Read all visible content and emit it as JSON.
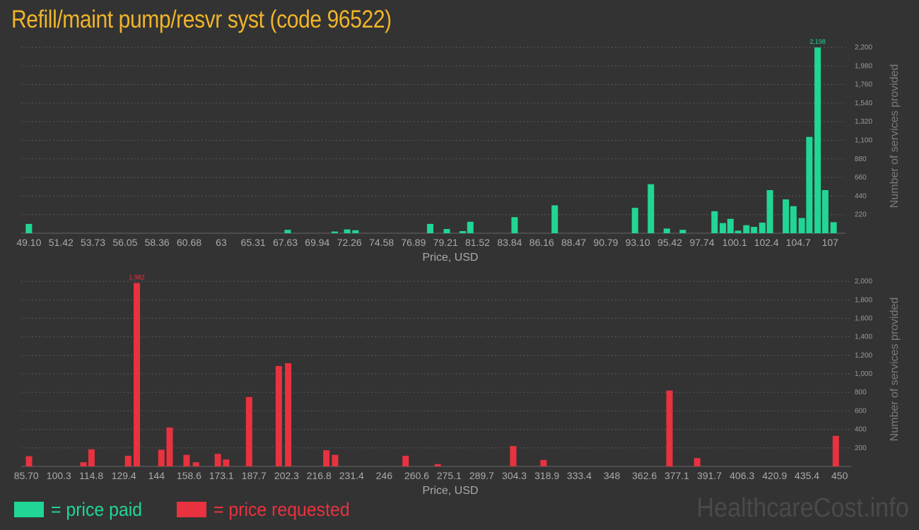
{
  "page": {
    "title": "Refill/maint pump/resvr syst (code 96522)",
    "watermark": "HealthcareCost.info"
  },
  "legend": {
    "paid_label": "= price paid",
    "requested_label": "= price requested"
  },
  "colors": {
    "paid": "#21d694",
    "requested": "#e8323f",
    "title": "#f0b429",
    "grid": "#5a5a5a",
    "tick": "#aaaaaa"
  },
  "chart_data": [
    {
      "type": "bar",
      "series": [
        {
          "name": "price paid",
          "color": "#21d694"
        }
      ],
      "xlabel": "Price, USD",
      "ylabel": "Number of services provided",
      "xlim": [
        48.8,
        107.6
      ],
      "ylim": [
        0,
        2300
      ],
      "grid": true,
      "x_ticks": [
        49.1,
        51.42,
        53.73,
        56.05,
        58.36,
        60.68,
        63,
        65.31,
        67.63,
        69.94,
        72.26,
        74.58,
        76.89,
        79.21,
        81.52,
        83.84,
        86.16,
        88.47,
        90.79,
        93.1,
        95.42,
        97.74,
        100.1,
        102.4,
        104.7,
        107
      ],
      "x_tick_labels": [
        "49.10",
        "51.42",
        "53.73",
        "56.05",
        "58.36",
        "60.68",
        "63",
        "65.31",
        "67.63",
        "69.94",
        "72.26",
        "74.58",
        "76.89",
        "79.21",
        "81.52",
        "83.84",
        "86.16",
        "88.47",
        "90.79",
        "93.10",
        "95.42",
        "97.74",
        "100.1",
        "102.4",
        "104.7",
        "107"
      ],
      "y_ticks": [
        220,
        440,
        660,
        880,
        1100,
        1320,
        1540,
        1760,
        1980,
        2200
      ],
      "y_tick_labels": [
        "220",
        "440",
        "660",
        "880",
        "1,100",
        "1,320",
        "1,540",
        "1,760",
        "1,980",
        "2,200"
      ],
      "peak_label": "2,198",
      "bars": [
        {
          "x": 49.1,
          "y": 110
        },
        {
          "x": 67.8,
          "y": 40
        },
        {
          "x": 71.2,
          "y": 20
        },
        {
          "x": 72.1,
          "y": 45
        },
        {
          "x": 72.7,
          "y": 35
        },
        {
          "x": 78.1,
          "y": 110
        },
        {
          "x": 79.3,
          "y": 50
        },
        {
          "x": 80.45,
          "y": 25
        },
        {
          "x": 81.0,
          "y": 135
        },
        {
          "x": 84.2,
          "y": 190
        },
        {
          "x": 87.1,
          "y": 330
        },
        {
          "x": 92.9,
          "y": 300
        },
        {
          "x": 94.05,
          "y": 580
        },
        {
          "x": 95.2,
          "y": 55
        },
        {
          "x": 96.35,
          "y": 40
        },
        {
          "x": 98.65,
          "y": 260
        },
        {
          "x": 99.25,
          "y": 120
        },
        {
          "x": 99.8,
          "y": 170
        },
        {
          "x": 100.35,
          "y": 30
        },
        {
          "x": 100.95,
          "y": 95
        },
        {
          "x": 101.5,
          "y": 75
        },
        {
          "x": 102.1,
          "y": 125
        },
        {
          "x": 102.65,
          "y": 510
        },
        {
          "x": 103.8,
          "y": 400
        },
        {
          "x": 104.35,
          "y": 320
        },
        {
          "x": 104.95,
          "y": 180
        },
        {
          "x": 105.5,
          "y": 1140
        },
        {
          "x": 106.1,
          "y": 2198
        },
        {
          "x": 106.65,
          "y": 510
        },
        {
          "x": 107.25,
          "y": 130
        }
      ]
    },
    {
      "type": "bar",
      "series": [
        {
          "name": "price requested",
          "color": "#e8323f"
        }
      ],
      "xlabel": "Price, USD",
      "ylabel": "Number of services provided",
      "xlim": [
        85.0,
        452.0
      ],
      "ylim": [
        0,
        2100
      ],
      "grid": true,
      "x_ticks": [
        85.7,
        100.3,
        114.8,
        129.4,
        144,
        158.6,
        173.1,
        187.7,
        202.3,
        216.8,
        231.4,
        246,
        260.6,
        275.1,
        289.7,
        304.3,
        318.9,
        333.4,
        348,
        362.6,
        377.1,
        391.7,
        406.3,
        420.9,
        435.4,
        450
      ],
      "x_tick_labels": [
        "85.70",
        "100.3",
        "114.8",
        "129.4",
        "144",
        "158.6",
        "173.1",
        "187.7",
        "202.3",
        "216.8",
        "231.4",
        "246",
        "260.6",
        "275.1",
        "289.7",
        "304.3",
        "318.9",
        "333.4",
        "348",
        "362.6",
        "377.1",
        "391.7",
        "406.3",
        "420.9",
        "435.4",
        "450"
      ],
      "y_ticks": [
        200,
        400,
        600,
        800,
        1000,
        1200,
        1400,
        1600,
        1800,
        2000
      ],
      "y_tick_labels": [
        "200",
        "400",
        "600",
        "800",
        "1,000",
        "1,200",
        "1,400",
        "1,600",
        "1,800",
        "2,000"
      ],
      "peak_label": "1,982",
      "bars": [
        {
          "x": 86.9,
          "y": 110
        },
        {
          "x": 111.3,
          "y": 45
        },
        {
          "x": 114.9,
          "y": 185
        },
        {
          "x": 131.3,
          "y": 115
        },
        {
          "x": 135.2,
          "y": 1982
        },
        {
          "x": 146.2,
          "y": 180
        },
        {
          "x": 149.9,
          "y": 420
        },
        {
          "x": 157.5,
          "y": 125
        },
        {
          "x": 161.7,
          "y": 45
        },
        {
          "x": 171.5,
          "y": 135
        },
        {
          "x": 175.2,
          "y": 75
        },
        {
          "x": 185.5,
          "y": 750
        },
        {
          "x": 198.8,
          "y": 1085
        },
        {
          "x": 203.0,
          "y": 1115
        },
        {
          "x": 220.1,
          "y": 175
        },
        {
          "x": 224.0,
          "y": 125
        },
        {
          "x": 255.6,
          "y": 115
        },
        {
          "x": 270.0,
          "y": 25
        },
        {
          "x": 303.8,
          "y": 220
        },
        {
          "x": 317.4,
          "y": 70
        },
        {
          "x": 373.8,
          "y": 820
        },
        {
          "x": 386.2,
          "y": 90
        },
        {
          "x": 448.3,
          "y": 330
        }
      ]
    }
  ]
}
